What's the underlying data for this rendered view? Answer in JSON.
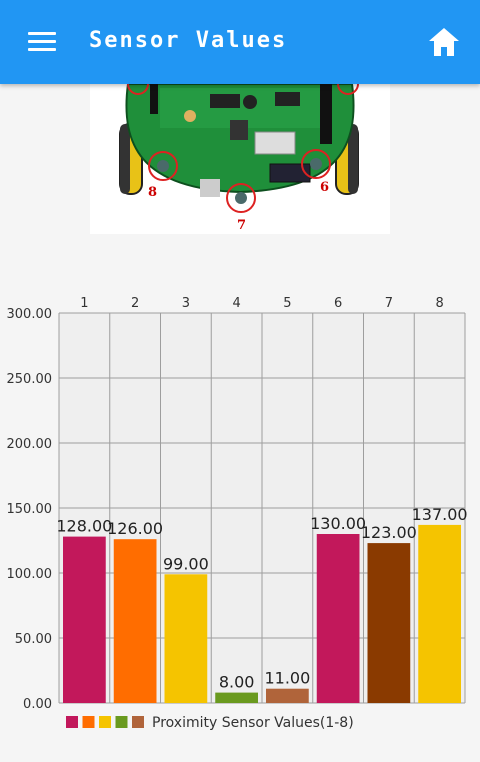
{
  "appbar": {
    "title": "Sensor Values",
    "menu_icon": "hamburger-menu-icon",
    "home_icon": "home-icon",
    "color": "#2196f3"
  },
  "image": {
    "sensor_labels": [
      "8",
      "7",
      "6"
    ]
  },
  "chart_data": {
    "type": "bar",
    "categories": [
      "1",
      "2",
      "3",
      "4",
      "5",
      "6",
      "7",
      "8"
    ],
    "values": [
      128.0,
      126.0,
      99.0,
      8.0,
      11.0,
      130.0,
      123.0,
      137.0
    ],
    "value_labels": [
      "128.00",
      "126.00",
      "99.00",
      "8.00",
      "11.00",
      "130.00",
      "123.00",
      "137.00"
    ],
    "colors": [
      "#c2185b",
      "#ff6d00",
      "#f5c400",
      "#6a9a1f",
      "#b0643a",
      "#c2185b",
      "#8a3a00",
      "#f5c400"
    ],
    "ylim": [
      0,
      300
    ],
    "yticks": [
      "0.00",
      "50.00",
      "100.00",
      "150.00",
      "200.00",
      "250.00",
      "300.00"
    ],
    "grid": true,
    "legend": {
      "label": "Proximity Sensor Values(1-8)",
      "colors": [
        "#c2185b",
        "#ff6d00",
        "#f5c400",
        "#6a9a1f",
        "#b0643a"
      ],
      "placement": "bottom-left"
    }
  }
}
